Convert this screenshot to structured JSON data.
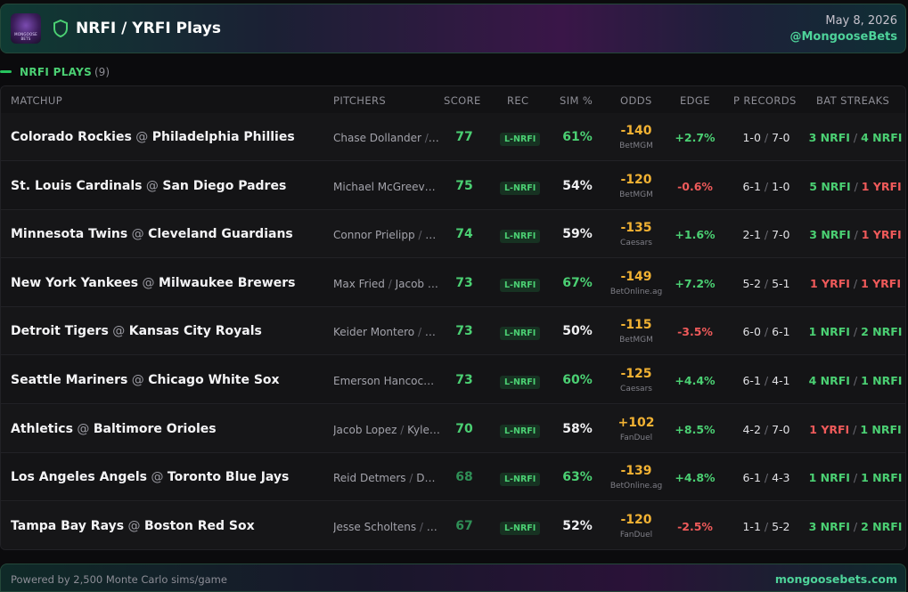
{
  "header": {
    "logo_text": "MONGOOSE BETS",
    "title": "NRFI / YRFI Plays",
    "date": "May 8, 2026",
    "handle": "@MongooseBets"
  },
  "section": {
    "label": "NRFI PLAYS",
    "count": "(9)"
  },
  "columns": {
    "matchup": "MATCHUP",
    "pitchers": "PITCHERS",
    "score": "SCORE",
    "rec": "REC",
    "sim": "SIM %",
    "odds": "ODDS",
    "edge": "EDGE",
    "precords": "P RECORDS",
    "batstreaks": "BAT STREAKS"
  },
  "colors": {
    "green": "#4bd073",
    "red": "#ef5a5a",
    "orange": "#f2b233",
    "neutral": "#f0f0f2",
    "score_bright": "#4bd073",
    "score_dim": "#2f8f56"
  },
  "rows": [
    {
      "away": "Colorado Rockies",
      "home": "Philadelphia Phillies",
      "p1": "Chase Dollander",
      "p2": "…",
      "score": "77",
      "rec": "L-NRFI",
      "sim": "61%",
      "sim_color": "green",
      "odds": "-140",
      "book": "BetMGM",
      "edge": "+2.7%",
      "edge_color": "green",
      "pr1": "1-0",
      "pr2": "7-0",
      "b1": "3 NRFI",
      "b1c": "green",
      "b2": "4 NRFI",
      "b2c": "green"
    },
    {
      "away": "St. Louis Cardinals",
      "home": "San Diego Padres",
      "p1": "Michael McGreevy …",
      "p2": "",
      "score": "75",
      "rec": "L-NRFI",
      "sim": "54%",
      "sim_color": "neutral",
      "odds": "-120",
      "book": "BetMGM",
      "edge": "-0.6%",
      "edge_color": "red",
      "pr1": "6-1",
      "pr2": "1-0",
      "b1": "5 NRFI",
      "b1c": "green",
      "b2": "1 YRFI",
      "b2c": "red"
    },
    {
      "away": "Minnesota Twins",
      "home": "Cleveland Guardians",
      "p1": "Connor Prielipp",
      "p2": "P…",
      "score": "74",
      "rec": "L-NRFI",
      "sim": "59%",
      "sim_color": "neutral",
      "odds": "-135",
      "book": "Caesars",
      "edge": "+1.6%",
      "edge_color": "green",
      "pr1": "2-1",
      "pr2": "7-0",
      "b1": "3 NRFI",
      "b1c": "green",
      "b2": "1 YRFI",
      "b2c": "red"
    },
    {
      "away": "New York Yankees",
      "home": "Milwaukee Brewers",
      "p1": "Max Fried",
      "p2": "Jacob …",
      "score": "73",
      "rec": "L-NRFI",
      "sim": "67%",
      "sim_color": "green",
      "odds": "-149",
      "book": "BetOnline.ag",
      "edge": "+7.2%",
      "edge_color": "green",
      "pr1": "5-2",
      "pr2": "5-1",
      "b1": "1 YRFI",
      "b1c": "red",
      "b2": "1 YRFI",
      "b2c": "red"
    },
    {
      "away": "Detroit Tigers",
      "home": "Kansas City Royals",
      "p1": "Keider Montero",
      "p2": "K…",
      "score": "73",
      "rec": "L-NRFI",
      "sim": "50%",
      "sim_color": "neutral",
      "odds": "-115",
      "book": "BetMGM",
      "edge": "-3.5%",
      "edge_color": "red",
      "pr1": "6-0",
      "pr2": "6-1",
      "b1": "1 NRFI",
      "b1c": "green",
      "b2": "2 NRFI",
      "b2c": "green"
    },
    {
      "away": "Seattle Mariners",
      "home": "Chicago White Sox",
      "p1": "Emerson Hancock …",
      "p2": "",
      "score": "73",
      "rec": "L-NRFI",
      "sim": "60%",
      "sim_color": "green",
      "odds": "-125",
      "book": "Caesars",
      "edge": "+4.4%",
      "edge_color": "green",
      "pr1": "6-1",
      "pr2": "4-1",
      "b1": "4 NRFI",
      "b1c": "green",
      "b2": "1 NRFI",
      "b2c": "green"
    },
    {
      "away": "Athletics",
      "home": "Baltimore Orioles",
      "p1": "Jacob Lopez",
      "p2": "Kyle…",
      "score": "70",
      "rec": "L-NRFI",
      "sim": "58%",
      "sim_color": "neutral",
      "odds": "+102",
      "book": "FanDuel",
      "edge": "+8.5%",
      "edge_color": "green",
      "pr1": "4-2",
      "pr2": "7-0",
      "b1": "1 YRFI",
      "b1c": "red",
      "b2": "1 NRFI",
      "b2c": "green"
    },
    {
      "away": "Los Angeles Angels",
      "home": "Toronto Blue Jays",
      "p1": "Reid Detmers",
      "p2": "Dyl…",
      "score": "68",
      "rec": "L-NRFI",
      "sim": "63%",
      "sim_color": "green",
      "odds": "-139",
      "book": "BetOnline.ag",
      "edge": "+4.8%",
      "edge_color": "green",
      "pr1": "6-1",
      "pr2": "4-3",
      "b1": "1 NRFI",
      "b1c": "green",
      "b2": "1 NRFI",
      "b2c": "green"
    },
    {
      "away": "Tampa Bay Rays",
      "home": "Boston Red Sox",
      "p1": "Jesse Scholtens",
      "p2": "…",
      "score": "67",
      "rec": "L-NRFI",
      "sim": "52%",
      "sim_color": "neutral",
      "odds": "-120",
      "book": "FanDuel",
      "edge": "-2.5%",
      "edge_color": "red",
      "pr1": "1-1",
      "pr2": "5-2",
      "b1": "3 NRFI",
      "b1c": "green",
      "b2": "2 NRFI",
      "b2c": "green"
    }
  ],
  "footer": {
    "left": "Powered by 2,500 Monte Carlo sims/game",
    "right": "mongoosebets.com"
  }
}
